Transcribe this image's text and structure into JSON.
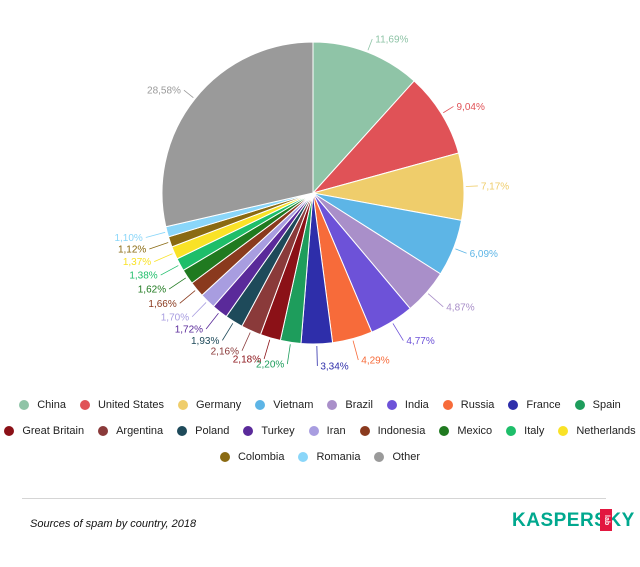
{
  "chart_data": {
    "type": "pie",
    "title": "",
    "categories": [
      "China",
      "United States",
      "Germany",
      "Vietnam",
      "Brazil",
      "India",
      "Russia",
      "France",
      "Spain",
      "Great Britain",
      "Argentina",
      "Poland",
      "Turkey",
      "Iran",
      "Indonesia",
      "Mexico",
      "Italy",
      "Netherlands",
      "Colombia",
      "Romania",
      "Other"
    ],
    "values": [
      11.69,
      9.04,
      7.17,
      6.09,
      4.87,
      4.77,
      4.29,
      3.34,
      2.2,
      2.18,
      2.16,
      1.93,
      1.72,
      1.7,
      1.66,
      1.62,
      1.38,
      1.37,
      1.12,
      1.1,
      28.58
    ],
    "value_labels": [
      "11,69%",
      "9,04%",
      "7,17%",
      "6,09%",
      "4,87%",
      "4,77%",
      "4,29%",
      "3,34%",
      "2,20%",
      "2,18%",
      "2,16%",
      "1,93%",
      "1,72%",
      "1,70%",
      "1,66%",
      "1,62%",
      "1,38%",
      "1,37%",
      "1,12%",
      "1,10%",
      "28,58%"
    ],
    "colors": [
      "#8fc4a7",
      "#e05257",
      "#efcd6b",
      "#5db5e6",
      "#a98fc9",
      "#6d52d8",
      "#f76b3a",
      "#2e2eaa",
      "#1e9d5c",
      "#8b1117",
      "#8a3a3a",
      "#1e4a5a",
      "#5a2a9a",
      "#a89de0",
      "#8a3a1e",
      "#207a20",
      "#1ebe6a",
      "#f9e227",
      "#8a6a12",
      "#8ad6f9",
      "#9a9a9a"
    ],
    "legend_position": "bottom"
  },
  "footer": {
    "caption": "Sources of spam by country, 2018",
    "brand": "KASPERSKY",
    "brand_sub": "lab"
  }
}
